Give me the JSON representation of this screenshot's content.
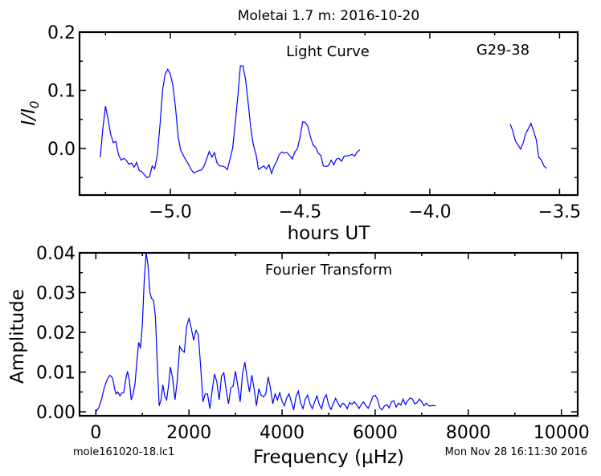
{
  "title": "Moletai 1.7 m:  2016-10-20",
  "footer_left": "mole161020-18.lc1",
  "footer_right": "Mon Nov 28 16:11:30 2016",
  "chart_data": [
    {
      "type": "line",
      "annotation_center": "Light Curve",
      "annotation_right": "G29-38",
      "xlabel": "hours UT",
      "ylabel": "I/I",
      "ylabel_sub": "0",
      "xlim": [
        -5.35,
        -3.43
      ],
      "ylim": [
        -0.08,
        0.2
      ],
      "xticks": [
        -5.0,
        -4.5,
        -4.0,
        -3.5
      ],
      "xtick_labels": [
        "−5.0",
        "−4.5",
        "−4.0",
        "−3.5"
      ],
      "xminor": [
        -5.25,
        -4.75,
        -4.25,
        -3.75
      ],
      "yticks": [
        0.0,
        0.1,
        0.2
      ],
      "ytick_labels": [
        "0.0",
        "0.1",
        "0.2"
      ],
      "yminor": [
        -0.05,
        0.05,
        0.15
      ],
      "color": "#0000ff",
      "segments": [
        [
          [
            -5.27,
            -0.015
          ],
          [
            -5.26,
            0.035
          ],
          [
            -5.25,
            0.073
          ],
          [
            -5.24,
            0.05
          ],
          [
            -5.23,
            0.025
          ],
          [
            -5.22,
            0.01
          ],
          [
            -5.21,
            0.012
          ],
          [
            -5.2,
            -0.01
          ],
          [
            -5.19,
            -0.02
          ],
          [
            -5.18,
            -0.017
          ],
          [
            -5.17,
            -0.02
          ],
          [
            -5.16,
            -0.027
          ],
          [
            -5.15,
            -0.025
          ],
          [
            -5.14,
            -0.032
          ],
          [
            -5.13,
            -0.024
          ],
          [
            -5.12,
            -0.038
          ],
          [
            -5.11,
            -0.04
          ],
          [
            -5.1,
            -0.045
          ],
          [
            -5.09,
            -0.05
          ],
          [
            -5.08,
            -0.048
          ],
          [
            -5.07,
            -0.03
          ],
          [
            -5.06,
            -0.035
          ],
          [
            -5.05,
            -0.01
          ],
          [
            -5.04,
            0.04
          ],
          [
            -5.03,
            0.1
          ],
          [
            -5.02,
            0.128
          ],
          [
            -5.01,
            0.136
          ],
          [
            -5.0,
            0.128
          ],
          [
            -4.99,
            0.108
          ],
          [
            -4.98,
            0.07
          ],
          [
            -4.97,
            0.02
          ],
          [
            -4.96,
            -0.003
          ],
          [
            -4.95,
            -0.012
          ],
          [
            -4.94,
            -0.02
          ],
          [
            -4.93,
            -0.027
          ],
          [
            -4.92,
            -0.036
          ],
          [
            -4.91,
            -0.042
          ],
          [
            -4.9,
            -0.04
          ],
          [
            -4.89,
            -0.038
          ],
          [
            -4.88,
            -0.037
          ],
          [
            -4.87,
            -0.03
          ],
          [
            -4.86,
            -0.018
          ],
          [
            -4.85,
            -0.005
          ],
          [
            -4.84,
            -0.015
          ],
          [
            -4.83,
            -0.007
          ],
          [
            -4.82,
            -0.025
          ],
          [
            -4.81,
            -0.03
          ],
          [
            -4.8,
            -0.03
          ],
          [
            -4.79,
            -0.032
          ],
          [
            -4.78,
            -0.036
          ],
          [
            -4.77,
            -0.018
          ],
          [
            -4.76,
            0.0
          ],
          [
            -4.75,
            0.042
          ],
          [
            -4.74,
            0.09
          ],
          [
            -4.73,
            0.142
          ],
          [
            -4.72,
            0.142
          ],
          [
            -4.71,
            0.118
          ],
          [
            -4.7,
            0.078
          ],
          [
            -4.69,
            0.035
          ],
          [
            -4.68,
            0.006
          ],
          [
            -4.67,
            -0.01
          ],
          [
            -4.66,
            -0.036
          ],
          [
            -4.65,
            -0.033
          ],
          [
            -4.64,
            -0.03
          ],
          [
            -4.63,
            -0.035
          ],
          [
            -4.62,
            -0.028
          ],
          [
            -4.61,
            -0.043
          ],
          [
            -4.6,
            -0.03
          ],
          [
            -4.59,
            -0.022
          ],
          [
            -4.58,
            -0.01
          ],
          [
            -4.57,
            -0.006
          ],
          [
            -4.56,
            -0.008
          ],
          [
            -4.55,
            -0.007
          ],
          [
            -4.54,
            -0.012
          ],
          [
            -4.53,
            -0.018
          ],
          [
            -4.52,
            -0.006
          ],
          [
            -4.51,
            0.0
          ],
          [
            -4.5,
            0.02
          ],
          [
            -4.49,
            0.046
          ],
          [
            -4.48,
            0.045
          ],
          [
            -4.47,
            0.038
          ],
          [
            -4.46,
            0.02
          ],
          [
            -4.45,
            0.006
          ],
          [
            -4.44,
            0.002
          ],
          [
            -4.43,
            -0.008
          ],
          [
            -4.42,
            -0.012
          ],
          [
            -4.41,
            -0.03
          ],
          [
            -4.4,
            -0.031
          ],
          [
            -4.39,
            -0.029
          ],
          [
            -4.38,
            -0.02
          ],
          [
            -4.37,
            -0.028
          ],
          [
            -4.36,
            -0.018
          ],
          [
            -4.35,
            -0.017
          ],
          [
            -4.34,
            -0.022
          ],
          [
            -4.33,
            -0.013
          ],
          [
            -4.32,
            -0.013
          ],
          [
            -4.31,
            -0.012
          ],
          [
            -4.3,
            -0.01
          ],
          [
            -4.29,
            -0.013
          ],
          [
            -4.28,
            -0.006
          ],
          [
            -4.27,
            -0.002
          ]
        ],
        [
          [
            -3.69,
            0.042
          ],
          [
            -3.68,
            0.03
          ],
          [
            -3.67,
            0.013
          ],
          [
            -3.66,
            0.006
          ],
          [
            -3.65,
            -0.001
          ],
          [
            -3.64,
            0.01
          ],
          [
            -3.63,
            0.026
          ],
          [
            -3.62,
            0.034
          ],
          [
            -3.61,
            0.043
          ],
          [
            -3.6,
            0.03
          ],
          [
            -3.59,
            0.016
          ],
          [
            -3.58,
            -0.015
          ],
          [
            -3.57,
            -0.02
          ],
          [
            -3.56,
            -0.03
          ],
          [
            -3.55,
            -0.034
          ]
        ]
      ]
    },
    {
      "type": "line",
      "annotation_center": "Fourier Transform",
      "xlabel": "Frequency (μHz)",
      "ylabel": "Amplitude",
      "xlim": [
        -350,
        10350
      ],
      "ylim": [
        -0.001,
        0.04
      ],
      "xticks": [
        0,
        2000,
        4000,
        6000,
        8000,
        10000
      ],
      "xtick_labels": [
        "0",
        "2000",
        "4000",
        "6000",
        "8000",
        "10000"
      ],
      "xminor": [
        1000,
        3000,
        5000,
        7000,
        9000
      ],
      "yticks": [
        0.0,
        0.01,
        0.02,
        0.03,
        0.04
      ],
      "ytick_labels": [
        "0.00",
        "0.01",
        "0.02",
        "0.03",
        "0.04"
      ],
      "yminor": [
        0.005,
        0.015,
        0.025,
        0.035
      ],
      "color": "#0000ff",
      "x": [
        0,
        60,
        120,
        180,
        240,
        300,
        360,
        400,
        430,
        470,
        520,
        560,
        600,
        640,
        680,
        720,
        760,
        800,
        840,
        880,
        920,
        960,
        1000,
        1040,
        1080,
        1120,
        1160,
        1200,
        1240,
        1280,
        1320,
        1360,
        1400,
        1440,
        1480,
        1520,
        1560,
        1600,
        1650,
        1700,
        1750,
        1800,
        1850,
        1900,
        1950,
        2000,
        2050,
        2100,
        2150,
        2200,
        2250,
        2300,
        2350,
        2400,
        2450,
        2500,
        2550,
        2600,
        2650,
        2700,
        2750,
        2800,
        2850,
        2900,
        2950,
        3000,
        3050,
        3100,
        3150,
        3200,
        3250,
        3300,
        3350,
        3400,
        3450,
        3500,
        3550,
        3600,
        3650,
        3700,
        3750,
        3800,
        3850,
        3900,
        3950,
        4000,
        4050,
        4100,
        4150,
        4200,
        4250,
        4300,
        4350,
        4400,
        4450,
        4500,
        4550,
        4600,
        4650,
        4700,
        4750,
        4800,
        4850,
        4900,
        4950,
        5000,
        5050,
        5100,
        5150,
        5200,
        5250,
        5300,
        5350,
        5400,
        5450,
        5500,
        5550,
        5600,
        5650,
        5700,
        5750,
        5800,
        5850,
        5900,
        5950,
        6000,
        6050,
        6100,
        6150,
        6200,
        6250,
        6300,
        6350,
        6400,
        6450,
        6500,
        6550,
        6600,
        6650,
        6700,
        6750,
        6800,
        6850,
        6900,
        6950,
        7000,
        7050,
        7100,
        7150,
        7200,
        7250,
        7300
      ],
      "y": [
        0.0,
        0.001,
        0.003,
        0.006,
        0.008,
        0.0092,
        0.0085,
        0.006,
        0.0045,
        0.005,
        0.004,
        0.0048,
        0.0048,
        0.008,
        0.0102,
        0.008,
        0.003,
        0.0045,
        0.007,
        0.0125,
        0.0175,
        0.016,
        0.022,
        0.033,
        0.04,
        0.037,
        0.03,
        0.0285,
        0.028,
        0.024,
        0.012,
        0.0015,
        0.003,
        0.0068,
        0.004,
        0.003,
        0.0065,
        0.0113,
        0.0085,
        0.003,
        0.008,
        0.0165,
        0.0155,
        0.015,
        0.0215,
        0.0235,
        0.021,
        0.018,
        0.0205,
        0.0195,
        0.0115,
        0.0025,
        0.0045,
        0.0045,
        0.0008,
        0.0055,
        0.0095,
        0.0075,
        0.003,
        0.009,
        0.0098,
        0.0055,
        0.002,
        0.006,
        0.0065,
        0.0102,
        0.0065,
        0.0025,
        0.0095,
        0.0125,
        0.0085,
        0.005,
        0.0092,
        0.0058,
        0.0015,
        0.0058,
        0.0042,
        0.0038,
        0.0045,
        0.0088,
        0.006,
        0.002,
        0.0045,
        0.003,
        0.0048,
        0.0026,
        0.0015,
        0.0035,
        0.0045,
        0.0025,
        0.0005,
        0.0038,
        0.0052,
        0.0022,
        0.0008,
        0.0032,
        0.0042,
        0.002,
        0.0008,
        0.0025,
        0.004,
        0.0018,
        0.0008,
        0.0033,
        0.0043,
        0.0018,
        0.0006,
        0.002,
        0.0034,
        0.0022,
        0.0012,
        0.0022,
        0.0018,
        0.0008,
        0.0023,
        0.0019,
        0.0025,
        0.0018,
        0.0008,
        0.0018,
        0.0025,
        0.0015,
        0.0009,
        0.0022,
        0.0038,
        0.0042,
        0.0032,
        0.001,
        0.0005,
        0.0015,
        0.0018,
        0.001,
        0.0025,
        0.0028,
        0.0012,
        0.0022,
        0.0017,
        0.0032,
        0.0018,
        0.0028,
        0.0035,
        0.0032,
        0.002,
        0.0023,
        0.0032,
        0.0025,
        0.0015,
        0.0022,
        0.0015,
        0.0015,
        0.0016,
        0.0015
      ]
    }
  ]
}
